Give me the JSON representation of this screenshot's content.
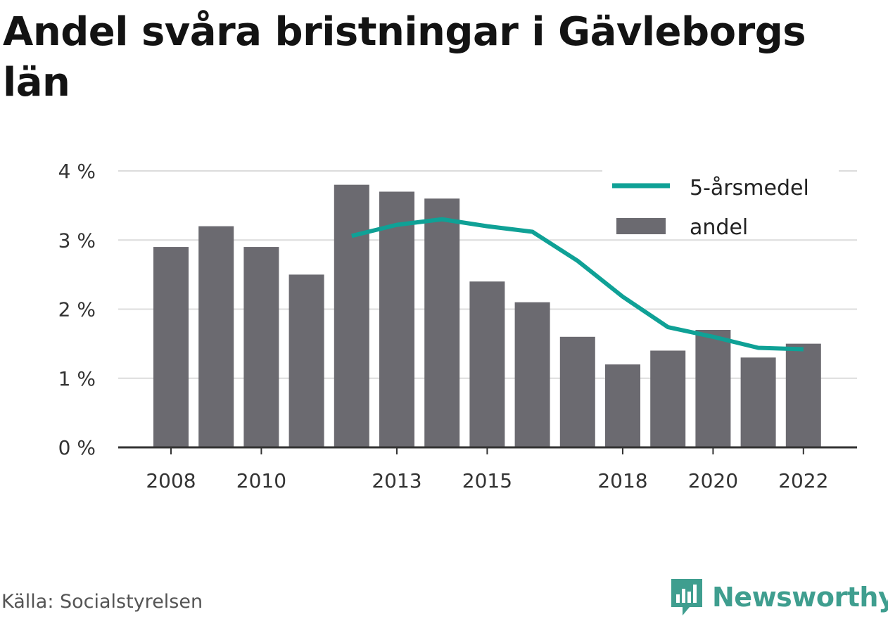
{
  "title": "Andel svåra bristningar i Gävleborgs län",
  "source": "Källa: Socialstyrelsen",
  "brand": "Newsworthy",
  "colors": {
    "bar": "#6b6a70",
    "line": "#0fa196",
    "grid": "#dcdcdc",
    "axis": "#333333",
    "brand": "#3f9e8f"
  },
  "chart_data": {
    "type": "bar",
    "title": "Andel svåra bristningar i Gävleborgs län",
    "x": [
      2008,
      2009,
      2010,
      2011,
      2012,
      2013,
      2014,
      2015,
      2016,
      2017,
      2018,
      2019,
      2020,
      2021,
      2022
    ],
    "x_tick_labels": [
      "2008",
      "2010",
      "2013",
      "2015",
      "2018",
      "2020",
      "2022"
    ],
    "y_tick_labels": [
      "0 %",
      "1 %",
      "2 %",
      "3 %",
      "4 %"
    ],
    "ylim": [
      0,
      4
    ],
    "grid": true,
    "legend_position": "top-right",
    "series": [
      {
        "name": "andel",
        "type": "bar",
        "values": [
          2.9,
          3.2,
          2.9,
          2.5,
          3.8,
          3.7,
          3.6,
          2.4,
          2.1,
          1.6,
          1.2,
          1.4,
          1.7,
          1.3,
          1.5
        ]
      },
      {
        "name": "5-årsmedel",
        "type": "line",
        "values": [
          null,
          null,
          null,
          null,
          3.06,
          3.22,
          3.3,
          3.2,
          3.12,
          2.7,
          2.18,
          1.74,
          1.6,
          1.44,
          1.42
        ]
      }
    ]
  }
}
